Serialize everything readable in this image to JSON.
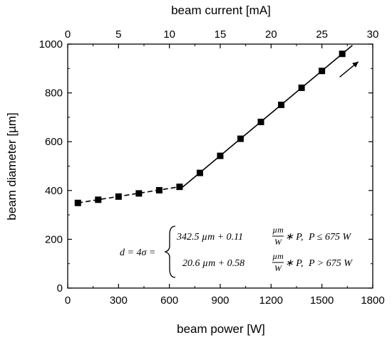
{
  "chart_data": {
    "type": "scatter",
    "xlabel": "beam power [W]",
    "x2label": "beam current [mA]",
    "ylabel": "beam diameter [µm]",
    "xlim": [
      0,
      1800
    ],
    "x2lim": [
      0,
      30
    ],
    "ylim": [
      0,
      1000
    ],
    "xticks": [
      0,
      300,
      600,
      900,
      1200,
      1500,
      1800
    ],
    "x2ticks": [
      0,
      5,
      10,
      15,
      20,
      25,
      30
    ],
    "yticks": [
      0,
      200,
      400,
      600,
      800,
      1000
    ],
    "grid": false,
    "series": [
      {
        "marker": "square",
        "x": [
          60,
          180,
          300,
          420,
          540,
          660,
          780,
          900,
          1020,
          1140,
          1260,
          1380,
          1500,
          1620
        ],
        "y": [
          349,
          362,
          375,
          388,
          401,
          415,
          472,
          542,
          612,
          681,
          751,
          821,
          890,
          960
        ]
      }
    ],
    "fit_segments": [
      {
        "style": "dashed",
        "x": [
          60,
          675
        ],
        "y": [
          349.1,
          416.8
        ]
      },
      {
        "style": "solid",
        "x": [
          675,
          1680
        ],
        "y": [
          412.1,
          995
        ]
      }
    ],
    "arrow": {
      "from": [
        1605,
        865
      ],
      "to": [
        1715,
        928
      ]
    },
    "equation": {
      "lhs": "d = 4σ =",
      "case1": {
        "a": "342.5 µm + 0.11 ",
        "num": "µm",
        "den": "W",
        "tail": " ∗ P,",
        "cond": "P  ≤ 675 W"
      },
      "case2": {
        "a": "20.6 µm + 0.58 ",
        "num": "µm",
        "den": "W",
        "tail": " ∗ P,",
        "cond": "P  > 675 W"
      }
    }
  }
}
